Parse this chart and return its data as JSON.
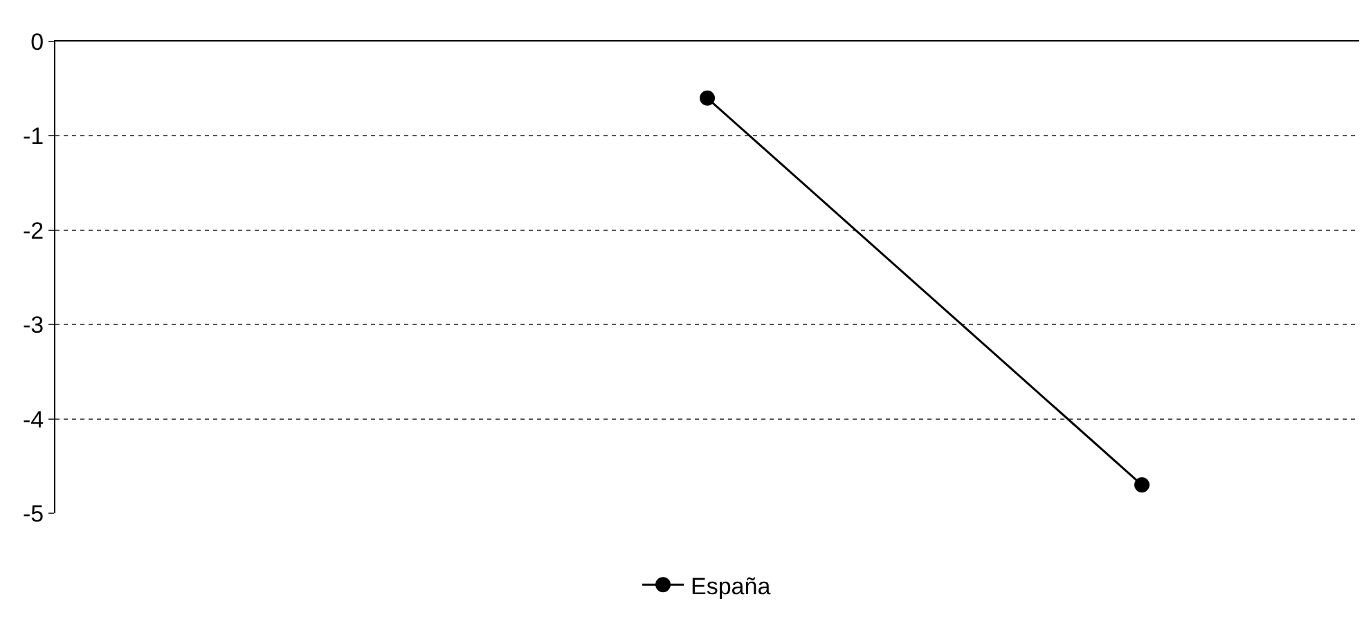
{
  "chart_data": {
    "type": "line",
    "categories": [
      null,
      null,
      null
    ],
    "series": [
      {
        "name": "España",
        "color": "#000000",
        "values": [
          null,
          -0.6,
          -4.7
        ]
      }
    ],
    "ylim": [
      -5,
      0
    ],
    "yticks": [
      0,
      -1,
      -2,
      -3,
      -4,
      -5
    ],
    "grid": "y",
    "legend": "bottom",
    "marker": "circle",
    "line_style": "solid"
  }
}
